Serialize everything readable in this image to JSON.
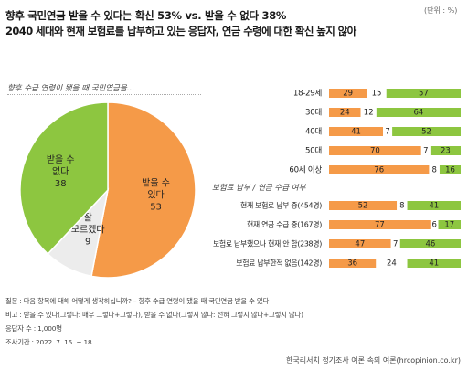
{
  "unit_label": "(단위 : %)",
  "title_line1": "향후 국민연금 받을 수 있다는 확신 53% vs. 받을 수 없다 38%",
  "title_line2": "2040 세대와 현재 보험료를 납부하고 있는 응답자, 연금 수령에 대한 확신 높지 않아",
  "colors": {
    "yes": "#f59a48",
    "no": "#8dc640",
    "unknown": "#ececec",
    "text": "#222222"
  },
  "chart_data": [
    {
      "type": "pie",
      "title": "향후 수급 연령이 됐을 때 국민연금을…",
      "slices": [
        {
          "label": "받을 수 있다",
          "value": 53,
          "color": "#f59a48"
        },
        {
          "label": "잘 모르겠다",
          "value": 9,
          "color": "#ececec"
        },
        {
          "label": "받을 수 없다",
          "value": 38,
          "color": "#8dc640"
        }
      ]
    },
    {
      "type": "bar",
      "stacked": true,
      "orientation": "horizontal",
      "categories": [
        "18-29세",
        "30대",
        "40대",
        "50대",
        "60세 이상",
        "현재 보험료 납부 중(454명)",
        "현재 연금 수급 중(167명)",
        "과거 보험료 납부했으나 현재 안 함(238명)",
        "보험료 납부한적 없음(142명)"
      ],
      "group_header": "보험료 납부 / 연금 수급 여부",
      "series": [
        {
          "key": "yes",
          "values": [
            29,
            24,
            41,
            70,
            76,
            52,
            77,
            47,
            36
          ],
          "color": "#f59a48"
        },
        {
          "key": "unknown",
          "values": [
            15,
            12,
            7,
            7,
            8,
            8,
            6,
            7,
            24
          ],
          "color": "#ffffff"
        },
        {
          "key": "no",
          "values": [
            57,
            64,
            52,
            23,
            16,
            41,
            17,
            46,
            41
          ],
          "color": "#8dc640"
        }
      ]
    }
  ],
  "footnotes": [
    "질문 : 다음 항목에 대해 어떻게 생각하십니까? – 향후 수급 연령이 됐을 때 국민연금 받을 수 있다",
    "비고 : 받을 수 있다(그렇다: 매우 그렇다+그렇다), 받을 수 없다(그렇지 않다: 전혀 그렇지 않다+그렇지 않다)",
    "응답자 수 : 1,000명",
    "조사기간 : 2022. 7. 15. ~ 18."
  ],
  "source": "한국리서치 정기조사 여론 속의 여론(hrcopinion.co.kr)"
}
